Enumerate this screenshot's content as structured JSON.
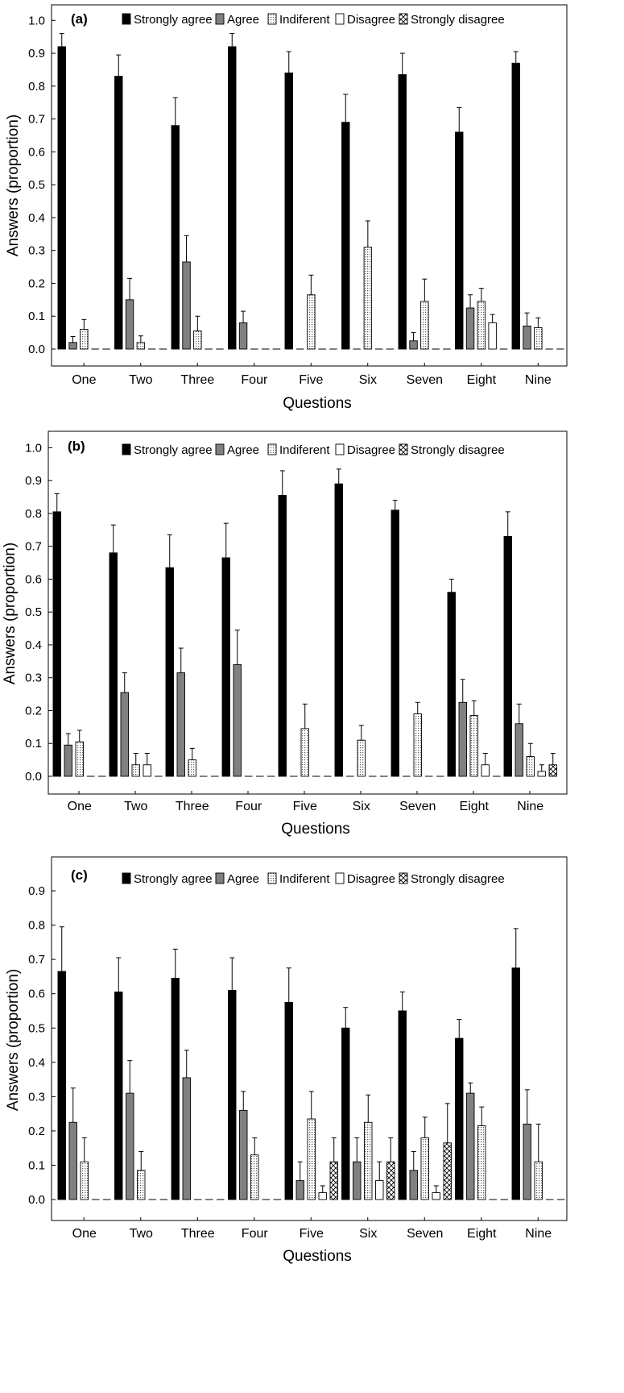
{
  "chart_data": [
    {
      "type": "bar",
      "panel_label": "(a)",
      "xlabel": "Questions",
      "ylabel": "Answers (proportion)",
      "ylim": [
        -0.05,
        1.05
      ],
      "yticks": [
        "0.0",
        "0.1",
        "0.2",
        "0.3",
        "0.4",
        "0.5",
        "0.6",
        "0.7",
        "0.8",
        "0.9",
        "1.0"
      ],
      "categories": [
        "One",
        "Two",
        "Three",
        "Four",
        "Five",
        "Six",
        "Seven",
        "Eight",
        "Nine"
      ],
      "legend_position": "top",
      "series": [
        {
          "name": "Strongly agree",
          "values": [
            0.92,
            0.83,
            0.68,
            0.92,
            0.84,
            0.69,
            0.835,
            0.66,
            0.87
          ],
          "errors": [
            0.04,
            0.065,
            0.085,
            0.04,
            0.065,
            0.085,
            0.065,
            0.075,
            0.035
          ]
        },
        {
          "name": "Agree",
          "values": [
            0.02,
            0.15,
            0.265,
            0.08,
            0.0,
            0.0,
            0.025,
            0.125,
            0.07
          ],
          "errors": [
            0.018,
            0.065,
            0.08,
            0.035,
            0.0,
            0.0,
            0.025,
            0.04,
            0.04
          ]
        },
        {
          "name": "Indiferent",
          "values": [
            0.06,
            0.02,
            0.055,
            0.0,
            0.165,
            0.31,
            0.145,
            0.145,
            0.065
          ],
          "errors": [
            0.03,
            0.02,
            0.045,
            0.0,
            0.06,
            0.08,
            0.068,
            0.04,
            0.03
          ]
        },
        {
          "name": "Disagree",
          "values": [
            0,
            0,
            0,
            0,
            0,
            0,
            0,
            0.08,
            0
          ],
          "errors": [
            0,
            0,
            0,
            0,
            0,
            0,
            0,
            0.025,
            0
          ]
        },
        {
          "name": "Strongly disagree",
          "values": [
            0,
            0,
            0,
            0,
            0,
            0,
            0,
            0,
            0
          ],
          "errors": [
            0,
            0,
            0,
            0,
            0,
            0,
            0,
            0,
            0
          ]
        }
      ]
    },
    {
      "type": "bar",
      "panel_label": "(b)",
      "xlabel": "Questions",
      "ylabel": "Answers (proportion)",
      "ylim": [
        -0.05,
        1.05
      ],
      "yticks": [
        "0.0",
        "0.1",
        "0.2",
        "0.3",
        "0.4",
        "0.5",
        "0.6",
        "0.7",
        "0.8",
        "0.9",
        "1.0"
      ],
      "categories": [
        "One",
        "Two",
        "Three",
        "Four",
        "Five",
        "Six",
        "Seven",
        "Eight",
        "Nine"
      ],
      "legend_position": "top",
      "series": [
        {
          "name": "Strongly agree",
          "values": [
            0.805,
            0.68,
            0.635,
            0.665,
            0.855,
            0.89,
            0.81,
            0.56,
            0.73
          ],
          "errors": [
            0.055,
            0.085,
            0.1,
            0.105,
            0.075,
            0.045,
            0.03,
            0.04,
            0.075
          ]
        },
        {
          "name": "Agree",
          "values": [
            0.095,
            0.255,
            0.315,
            0.34,
            0.0,
            0.0,
            0.0,
            0.225,
            0.16
          ],
          "errors": [
            0.035,
            0.06,
            0.075,
            0.105,
            0.0,
            0.0,
            0.0,
            0.07,
            0.06
          ]
        },
        {
          "name": "Indiferent",
          "values": [
            0.105,
            0.035,
            0.05,
            0.0,
            0.145,
            0.11,
            0.19,
            0.185,
            0.06
          ],
          "errors": [
            0.035,
            0.035,
            0.035,
            0.0,
            0.075,
            0.045,
            0.035,
            0.045,
            0.04
          ]
        },
        {
          "name": "Disagree",
          "values": [
            0,
            0.035,
            0,
            0,
            0,
            0,
            0,
            0.035,
            0.015
          ],
          "errors": [
            0,
            0.035,
            0,
            0,
            0,
            0,
            0,
            0.035,
            0.02
          ]
        },
        {
          "name": "Strongly disagree",
          "values": [
            0,
            0,
            0,
            0,
            0,
            0,
            0,
            0,
            0.035
          ],
          "errors": [
            0,
            0,
            0,
            0,
            0,
            0,
            0,
            0,
            0.035
          ]
        }
      ]
    },
    {
      "type": "bar",
      "panel_label": "(c)",
      "xlabel": "Questions",
      "ylabel": "Answers (proportion)",
      "ylim": [
        -0.065,
        0.9
      ],
      "yticks": [
        "0.0",
        "0.1",
        "0.2",
        "0.3",
        "0.4",
        "0.5",
        "0.6",
        "0.7",
        "0.8",
        "0.9"
      ],
      "categories": [
        "One",
        "Two",
        "Three",
        "Four",
        "Five",
        "Six",
        "Seven",
        "Eight",
        "Nine"
      ],
      "legend_position": "top",
      "series": [
        {
          "name": "Strongly agree",
          "values": [
            0.665,
            0.605,
            0.645,
            0.61,
            0.575,
            0.5,
            0.55,
            0.47,
            0.675
          ],
          "errors": [
            0.13,
            0.1,
            0.085,
            0.095,
            0.1,
            0.06,
            0.055,
            0.055,
            0.115
          ]
        },
        {
          "name": "Agree",
          "values": [
            0.225,
            0.31,
            0.355,
            0.26,
            0.055,
            0.11,
            0.085,
            0.31,
            0.22
          ],
          "errors": [
            0.1,
            0.095,
            0.08,
            0.055,
            0.055,
            0.07,
            0.055,
            0.03,
            0.1
          ]
        },
        {
          "name": "Indiferent",
          "values": [
            0.11,
            0.085,
            0.0,
            0.13,
            0.235,
            0.225,
            0.18,
            0.215,
            0.11
          ],
          "errors": [
            0.07,
            0.055,
            0.0,
            0.05,
            0.08,
            0.08,
            0.06,
            0.055,
            0.11
          ]
        },
        {
          "name": "Disagree",
          "values": [
            0,
            0,
            0,
            0,
            0.02,
            0.055,
            0.02,
            0,
            0
          ],
          "errors": [
            0,
            0,
            0,
            0,
            0.02,
            0.055,
            0.02,
            0,
            0
          ]
        },
        {
          "name": "Strongly disagree",
          "values": [
            0,
            0,
            0,
            0,
            0.11,
            0.11,
            0.165,
            0,
            0
          ],
          "errors": [
            0,
            0,
            0,
            0,
            0.07,
            0.07,
            0.115,
            0,
            0
          ]
        }
      ]
    }
  ]
}
